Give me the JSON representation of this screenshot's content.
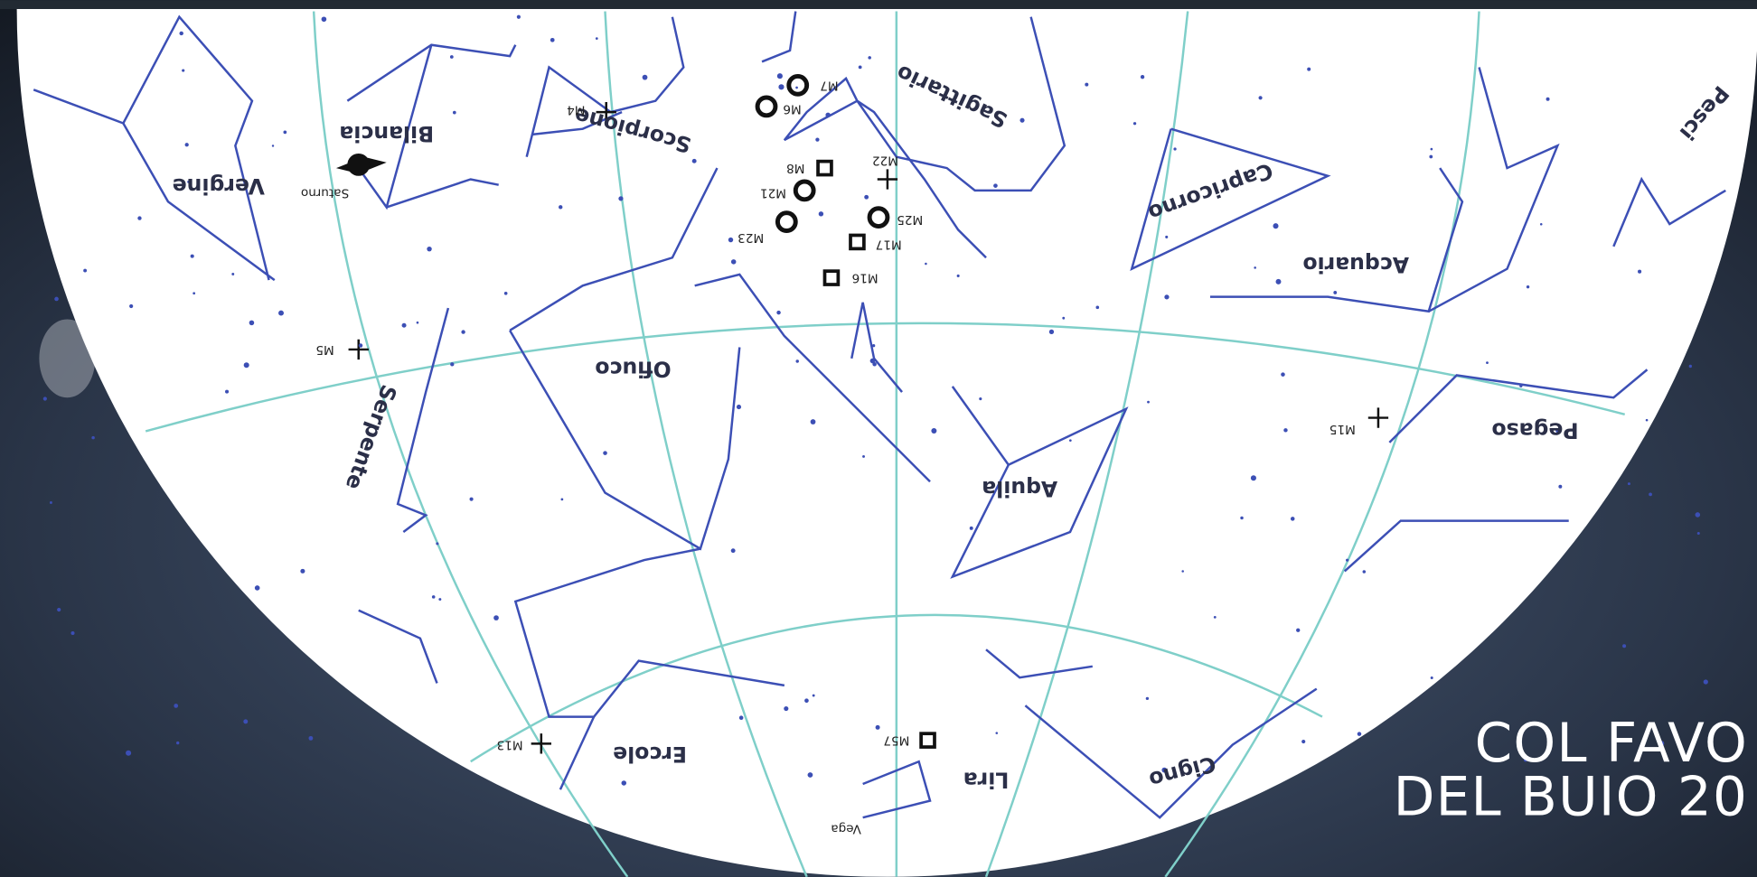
{
  "constellations": [
    "Vergine",
    "Bilancia",
    "Scorpione",
    "Sagittario",
    "Capricorno",
    "Acquario",
    "Pesci",
    "Ofiuco",
    "Serpente",
    "Aquila",
    "Pegaso",
    "Ercole",
    "Lira",
    "Cigno"
  ],
  "stars": [
    "Saturno",
    "Vega"
  ],
  "objects": [
    "M7",
    "M6",
    "M8",
    "M21",
    "M23",
    "M22",
    "M25",
    "M17",
    "M16",
    "M4",
    "M5",
    "M15",
    "M13",
    "M57"
  ],
  "banner": {
    "line1": "COL FAVO",
    "line2": "DEL BUIO 20"
  }
}
